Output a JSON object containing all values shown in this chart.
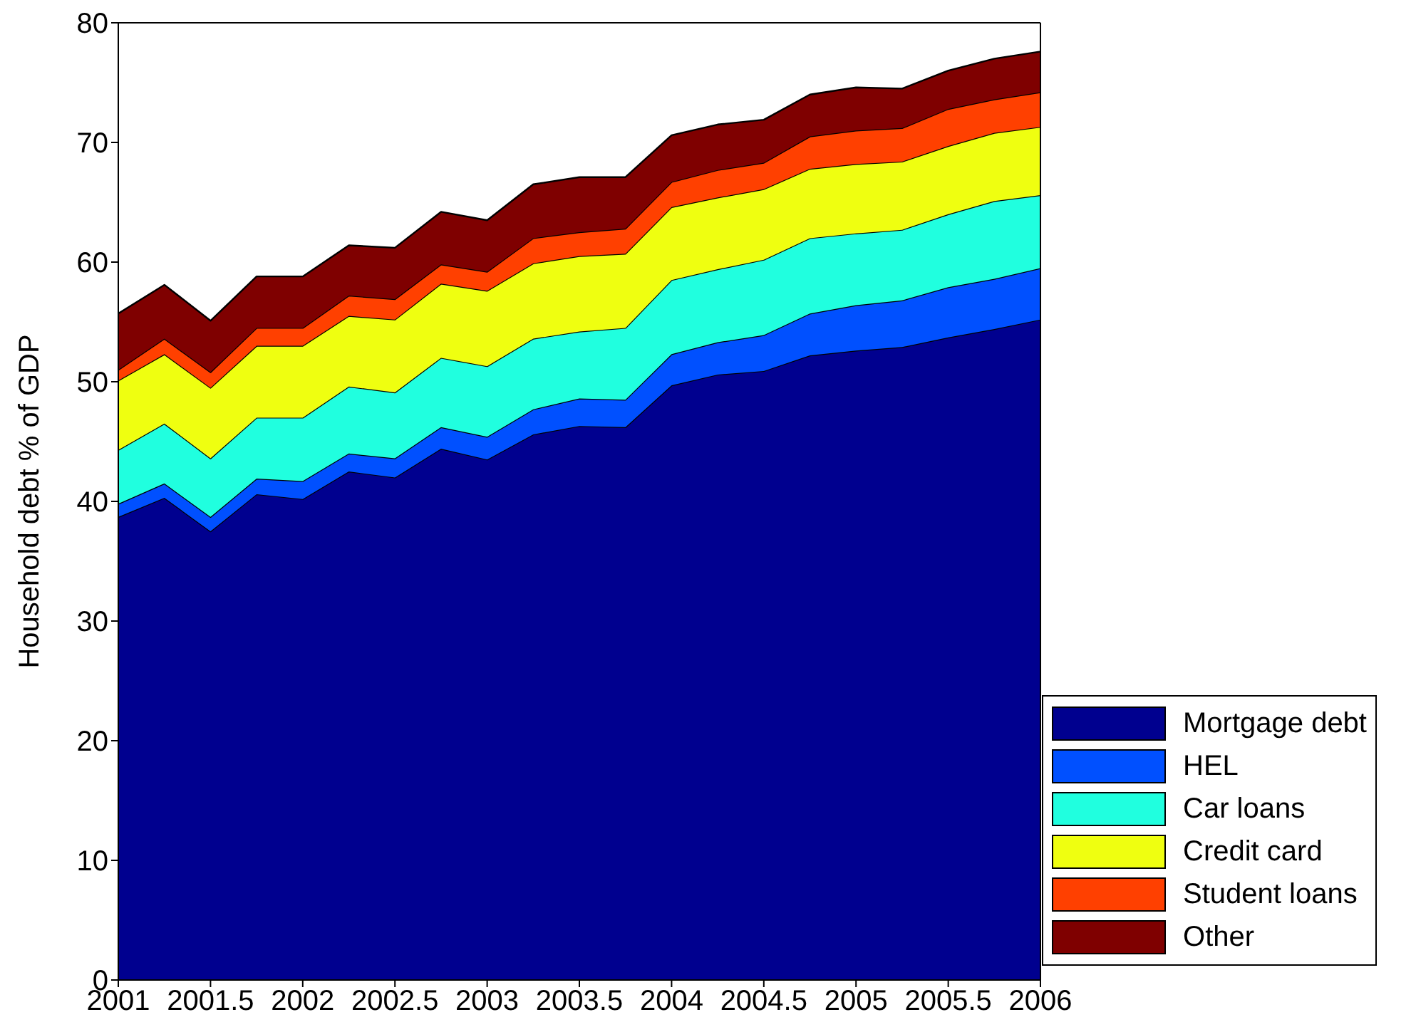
{
  "chart_data": {
    "type": "area",
    "stacked": true,
    "ylabel": "Household debt % of GDP",
    "x": [
      2001,
      2001.25,
      2001.5,
      2001.75,
      2002,
      2002.25,
      2002.5,
      2002.75,
      2003,
      2003.25,
      2003.5,
      2003.75,
      2004,
      2004.25,
      2004.5,
      2004.75,
      2005,
      2005.25,
      2005.5,
      2005.75,
      2006
    ],
    "series": [
      {
        "name": "Mortgage debt",
        "color": "#00008f",
        "values": [
          38.7,
          40.3,
          37.5,
          40.6,
          40.2,
          42.5,
          42.0,
          44.4,
          43.5,
          45.6,
          46.3,
          46.2,
          49.7,
          50.6,
          50.9,
          52.2,
          52.6,
          52.9,
          53.7,
          54.4,
          55.2
        ]
      },
      {
        "name": "HEL",
        "color": "#0050ff",
        "values": [
          1.1,
          1.2,
          1.2,
          1.3,
          1.5,
          1.5,
          1.6,
          1.8,
          1.9,
          2.1,
          2.3,
          2.3,
          2.6,
          2.7,
          3.0,
          3.5,
          3.8,
          3.9,
          4.2,
          4.2,
          4.3
        ]
      },
      {
        "name": "Car loans",
        "color": "#20ffdf",
        "values": [
          4.5,
          5.0,
          4.9,
          5.1,
          5.3,
          5.6,
          5.5,
          5.8,
          5.9,
          5.9,
          5.6,
          6.0,
          6.2,
          6.1,
          6.3,
          6.3,
          6.0,
          5.9,
          6.1,
          6.5,
          6.1
        ]
      },
      {
        "name": "Credit card",
        "color": "#efff10",
        "values": [
          5.8,
          5.8,
          5.9,
          6.0,
          6.0,
          5.9,
          6.1,
          6.2,
          6.3,
          6.3,
          6.3,
          6.2,
          6.1,
          6.0,
          5.9,
          5.8,
          5.8,
          5.7,
          5.7,
          5.7,
          5.7
        ]
      },
      {
        "name": "Student loans",
        "color": "#ff4000",
        "values": [
          0.9,
          1.3,
          1.3,
          1.5,
          1.5,
          1.7,
          1.7,
          1.6,
          1.6,
          2.1,
          2.0,
          2.1,
          2.1,
          2.3,
          2.2,
          2.7,
          2.8,
          2.8,
          3.1,
          2.8,
          2.9
        ]
      },
      {
        "name": "Other",
        "color": "#7f0000",
        "values": [
          4.7,
          4.5,
          4.3,
          4.3,
          4.3,
          4.2,
          4.3,
          4.4,
          4.3,
          4.5,
          4.6,
          4.3,
          3.9,
          3.8,
          3.6,
          3.5,
          3.6,
          3.3,
          3.2,
          3.4,
          3.4
        ]
      }
    ],
    "xlim": [
      2001,
      2006
    ],
    "xticks": [
      2001,
      2001.5,
      2002,
      2002.5,
      2003,
      2003.5,
      2004,
      2004.5,
      2005,
      2005.5,
      2006
    ],
    "ylim": [
      0,
      80
    ],
    "yticks": [
      0,
      10,
      20,
      30,
      40,
      50,
      60,
      70,
      80
    ],
    "grid": false,
    "legend": "bottom right"
  }
}
